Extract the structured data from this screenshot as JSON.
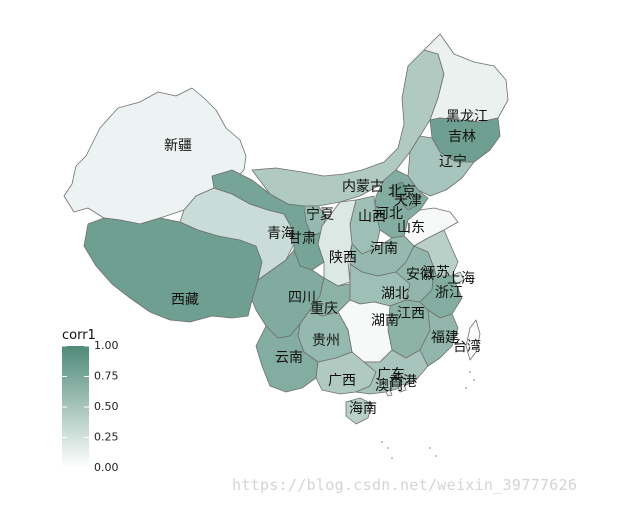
{
  "legend": {
    "title": "corr1",
    "ticks": [
      "1.00",
      "0.75",
      "0.50",
      "0.25",
      "0.00"
    ],
    "color_low": "#ffffff",
    "color_high": "#4f8a78"
  },
  "watermark": "https://blog.csdn.net/weixin_39777626",
  "provinces": [
    {
      "id": "xinjiang",
      "name": "新疆",
      "value": 0.1
    },
    {
      "id": "xizang",
      "name": "西藏",
      "value": 0.82
    },
    {
      "id": "qinghai",
      "name": "青海",
      "value": 0.3
    },
    {
      "id": "gansu",
      "name": "甘肃",
      "value": 0.78
    },
    {
      "id": "neimenggu",
      "name": "内蒙古",
      "value": 0.45
    },
    {
      "id": "heilongjiang",
      "name": "黑龙江",
      "value": 0.12
    },
    {
      "id": "jilin",
      "name": "吉林",
      "value": 0.82
    },
    {
      "id": "liaoning",
      "name": "辽宁",
      "value": 0.5
    },
    {
      "id": "hebei",
      "name": "河北",
      "value": 0.7
    },
    {
      "id": "beijing",
      "name": "北京",
      "value": 0.85
    },
    {
      "id": "tianjin",
      "name": "天津",
      "value": 0.75
    },
    {
      "id": "shanxi",
      "name": "山西",
      "value": 0.55
    },
    {
      "id": "shandong",
      "name": "山东",
      "value": 0.05
    },
    {
      "id": "henan",
      "name": "河南",
      "value": 0.6
    },
    {
      "id": "shaanxi",
      "name": "陕西",
      "value": 0.2
    },
    {
      "id": "ningxia",
      "name": "宁夏",
      "value": 0.6
    },
    {
      "id": "sichuan",
      "name": "四川",
      "value": 0.72
    },
    {
      "id": "chongqing",
      "name": "重庆",
      "value": 0.65
    },
    {
      "id": "hubei",
      "name": "湖北",
      "value": 0.55
    },
    {
      "id": "anhui",
      "name": "安徽",
      "value": 0.62
    },
    {
      "id": "jiangsu",
      "name": "江苏",
      "value": 0.4
    },
    {
      "id": "shanghai",
      "name": "上海",
      "value": 0.2
    },
    {
      "id": "zhejiang",
      "name": "浙江",
      "value": 0.7
    },
    {
      "id": "jiangxi",
      "name": "江西",
      "value": 0.65
    },
    {
      "id": "hunan",
      "name": "湖南",
      "value": 0.05
    },
    {
      "id": "guizhou",
      "name": "贵州",
      "value": 0.6
    },
    {
      "id": "yunnan",
      "name": "云南",
      "value": 0.7
    },
    {
      "id": "guangxi",
      "name": "广西",
      "value": 0.45
    },
    {
      "id": "guangdong",
      "name": "广东",
      "value": 0.5
    },
    {
      "id": "fujian",
      "name": "福建",
      "value": 0.62
    },
    {
      "id": "taiwan",
      "name": "台湾",
      "value": 0.02
    },
    {
      "id": "hainan",
      "name": "海南",
      "value": 0.4
    },
    {
      "id": "xianggang",
      "name": "香港",
      "value": 0.1
    },
    {
      "id": "aomen",
      "name": "澳门",
      "value": 0.1
    }
  ]
}
